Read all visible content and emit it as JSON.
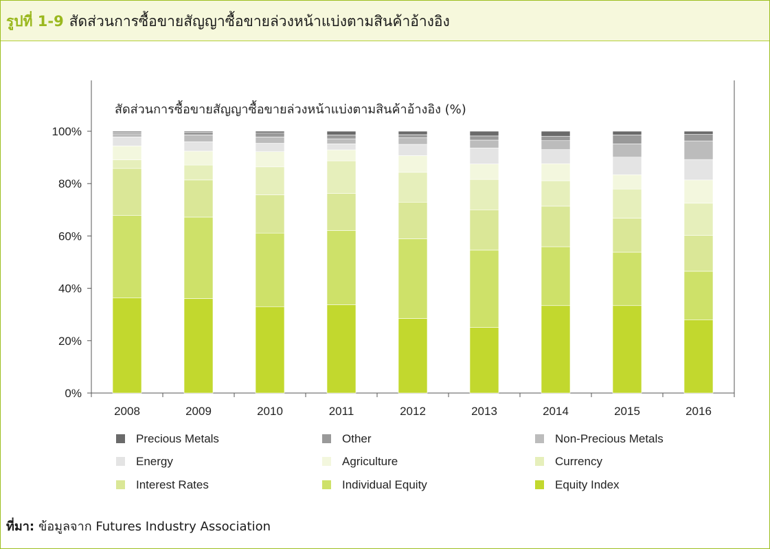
{
  "header": {
    "figure_label": "รูปที่ 1-9",
    "title": "สัดส่วนการซื้อขายสัญญาซื้อขายล่วงหน้าแบ่งตามสินค้าอ้างอิง"
  },
  "source": {
    "label": "ที่มา:",
    "text": "ข้อมูลจาก Futures Industry Association"
  },
  "chart_data": {
    "type": "bar",
    "stacked": true,
    "title": "สัดส่วนการซื้อขายสัญญาซื้อขายล่วงหน้าแบ่งตามสินค้าอ้างอิง (%)",
    "xlabel": "",
    "ylabel": "",
    "ylim": [
      0,
      100
    ],
    "y_ticks": [
      "0%",
      "20%",
      "40%",
      "60%",
      "80%",
      "100%"
    ],
    "grid": false,
    "legend_position": "bottom",
    "categories": [
      "2008",
      "2009",
      "2010",
      "2011",
      "2012",
      "2013",
      "2014",
      "2015",
      "2016"
    ],
    "series": [
      {
        "name": "Equity Index",
        "color": "#c2d82e",
        "values": [
          36.4,
          36.1,
          33.0,
          33.7,
          28.5,
          25.1,
          33.4,
          33.4,
          28.0
        ]
      },
      {
        "name": "Individual Equity",
        "color": "#cee169",
        "values": [
          31.4,
          31.1,
          28.1,
          28.4,
          30.4,
          29.5,
          22.5,
          20.4,
          18.5
        ]
      },
      {
        "name": "Interest Rates",
        "color": "#dae797",
        "values": [
          18.0,
          14.2,
          14.6,
          14.1,
          14.0,
          15.4,
          15.5,
          13.0,
          13.7
        ]
      },
      {
        "name": "Currency",
        "color": "#e6efbb",
        "values": [
          3.3,
          5.7,
          10.7,
          12.5,
          11.4,
          11.6,
          9.7,
          11.1,
          12.3
        ]
      },
      {
        "name": "Agriculture",
        "color": "#f3f7de",
        "values": [
          5.3,
          5.3,
          5.8,
          4.2,
          6.4,
          5.9,
          6.5,
          5.5,
          8.9
        ]
      },
      {
        "name": "Energy",
        "color": "#e4e4e4",
        "values": [
          3.4,
          3.6,
          3.2,
          2.3,
          4.3,
          6.1,
          5.4,
          6.7,
          7.8
        ]
      },
      {
        "name": "Non-Precious Metals",
        "color": "#bcbcbc",
        "values": [
          1.2,
          2.6,
          2.4,
          1.9,
          2.5,
          3.0,
          3.4,
          5.1,
          7.1
        ]
      },
      {
        "name": "Other",
        "color": "#999999",
        "values": [
          0.6,
          1.0,
          1.5,
          1.5,
          1.2,
          1.6,
          1.7,
          3.4,
          2.5
        ]
      },
      {
        "name": "Precious Metals",
        "color": "#6a6a6a",
        "values": [
          0.4,
          0.4,
          0.7,
          1.4,
          1.3,
          1.8,
          1.9,
          1.4,
          1.2
        ]
      }
    ],
    "legend_order": [
      "Precious Metals",
      "Other",
      "Non-Precious Metals",
      "Energy",
      "Agriculture",
      "Currency",
      "Interest Rates",
      "Individual Equity",
      "Equity Index"
    ]
  }
}
